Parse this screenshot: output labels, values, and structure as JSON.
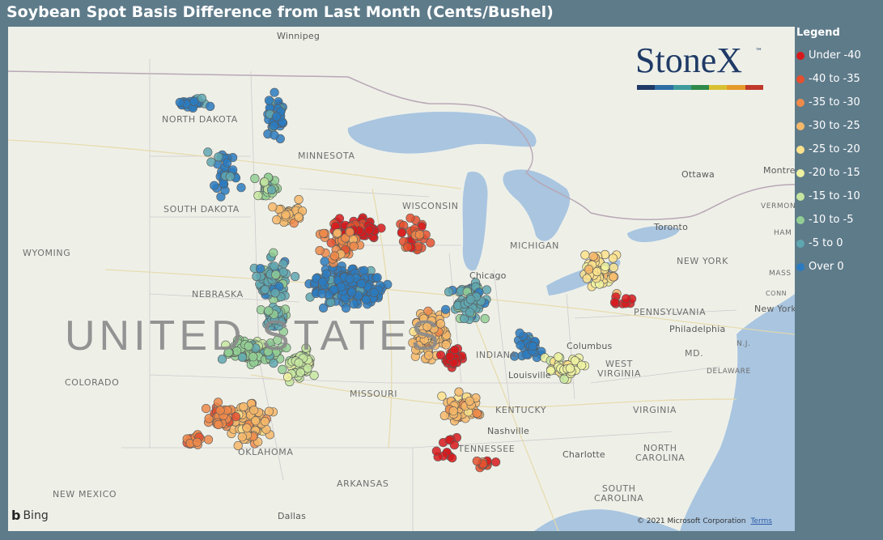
{
  "title": "Soybean Spot Basis Difference from Last Month (Cents/Bushel)",
  "legend": {
    "title": "Legend",
    "items": [
      {
        "label": "Under -40",
        "color": "#d7191c"
      },
      {
        "label": "-40 to -35",
        "color": "#e4502e"
      },
      {
        "label": "-35 to -30",
        "color": "#ef8a4a"
      },
      {
        "label": "-30 to -25",
        "color": "#f6b86a"
      },
      {
        "label": "-25 to -20",
        "color": "#fce28c"
      },
      {
        "label": "-20 to -15",
        "color": "#eef2a0"
      },
      {
        "label": "-15 to -10",
        "color": "#c6e6a0"
      },
      {
        "label": "-10 to -5",
        "color": "#93cf94"
      },
      {
        "label": "-5 to 0",
        "color": "#5fa7b0"
      },
      {
        "label": "Over 0",
        "color": "#2b7bc0"
      }
    ]
  },
  "logo": {
    "text": "StoneX",
    "tm": "™",
    "bar_colors": [
      "#1f3a66",
      "#2e6da4",
      "#3e9a9b",
      "#2e8a4a",
      "#d9c032",
      "#e69a2a",
      "#c0392b"
    ]
  },
  "map": {
    "country_label": "UNITED STATES",
    "places": [
      {
        "key": "winnipeg",
        "text": "Winnipeg"
      },
      {
        "key": "north_dakota",
        "text": "NORTH DAKOTA"
      },
      {
        "key": "minnesota",
        "text": "MINNESOTA"
      },
      {
        "key": "south_dakota",
        "text": "SOUTH DAKOTA"
      },
      {
        "key": "wyoming",
        "text": "WYOMING"
      },
      {
        "key": "nebraska",
        "text": "NEBRASKA"
      },
      {
        "key": "colorado",
        "text": "COLORADO"
      },
      {
        "key": "wisconsin",
        "text": "WISCONSIN"
      },
      {
        "key": "michigan",
        "text": "MICHIGAN"
      },
      {
        "key": "chicago",
        "text": "Chicago"
      },
      {
        "key": "indiana",
        "text": "INDIANA"
      },
      {
        "key": "missouri",
        "text": "MISSOURI"
      },
      {
        "key": "kentucky",
        "text": "KENTUCKY"
      },
      {
        "key": "louisville",
        "text": "Louisville"
      },
      {
        "key": "columbus",
        "text": "Columbus"
      },
      {
        "key": "ottawa",
        "text": "Ottawa"
      },
      {
        "key": "montreal",
        "text": "Montre"
      },
      {
        "key": "toronto",
        "text": "Toronto"
      },
      {
        "key": "new_york",
        "text": "NEW YORK"
      },
      {
        "key": "vermont",
        "text": "VERMON"
      },
      {
        "key": "pennsylvania",
        "text": "PENNSYLVANIA"
      },
      {
        "key": "philadelphia",
        "text": "Philadelphia"
      },
      {
        "key": "new_york_city",
        "text": "New York"
      },
      {
        "key": "west_virginia",
        "text": "WEST\nVIRGINIA"
      },
      {
        "key": "virginia",
        "text": "VIRGINIA"
      },
      {
        "key": "delaware",
        "text": "DELAWARE"
      },
      {
        "key": "md",
        "text": "MD."
      },
      {
        "key": "nj",
        "text": "N.J."
      },
      {
        "key": "conn",
        "text": "CONN"
      },
      {
        "key": "ham",
        "text": "HAM"
      },
      {
        "key": "mass",
        "text": "MASS"
      },
      {
        "key": "oklahoma",
        "text": "OKLAHOMA"
      },
      {
        "key": "tennessee",
        "text": "TENNESSEE"
      },
      {
        "key": "nashville",
        "text": "Nashville"
      },
      {
        "key": "charlotte",
        "text": "Charlotte"
      },
      {
        "key": "north_carolina",
        "text": "NORTH\nCAROLINA"
      },
      {
        "key": "south_carolina",
        "text": "SOUTH\nCAROLINA"
      },
      {
        "key": "arkansas",
        "text": "ARKANSAS"
      },
      {
        "key": "new_mexico",
        "text": "NEW MEXICO"
      },
      {
        "key": "dallas",
        "text": "Dallas"
      }
    ],
    "attribution": "© 2021 Microsoft Corporation",
    "terms": "Terms",
    "bing": "Bing"
  }
}
